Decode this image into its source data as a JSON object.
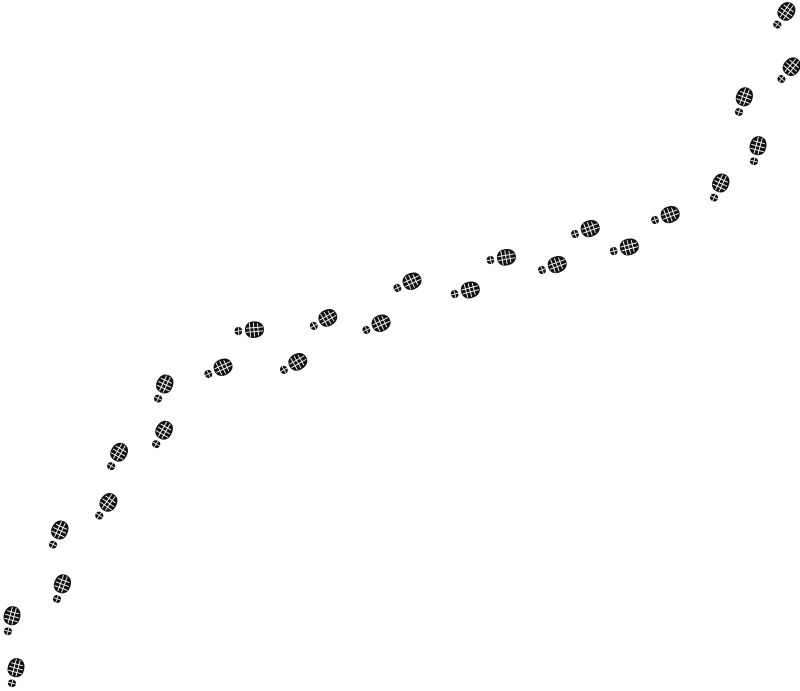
{
  "image": {
    "background_color": "#ffffff",
    "print_color": "#111111",
    "print_highlight": "#ffffff"
  }
}
